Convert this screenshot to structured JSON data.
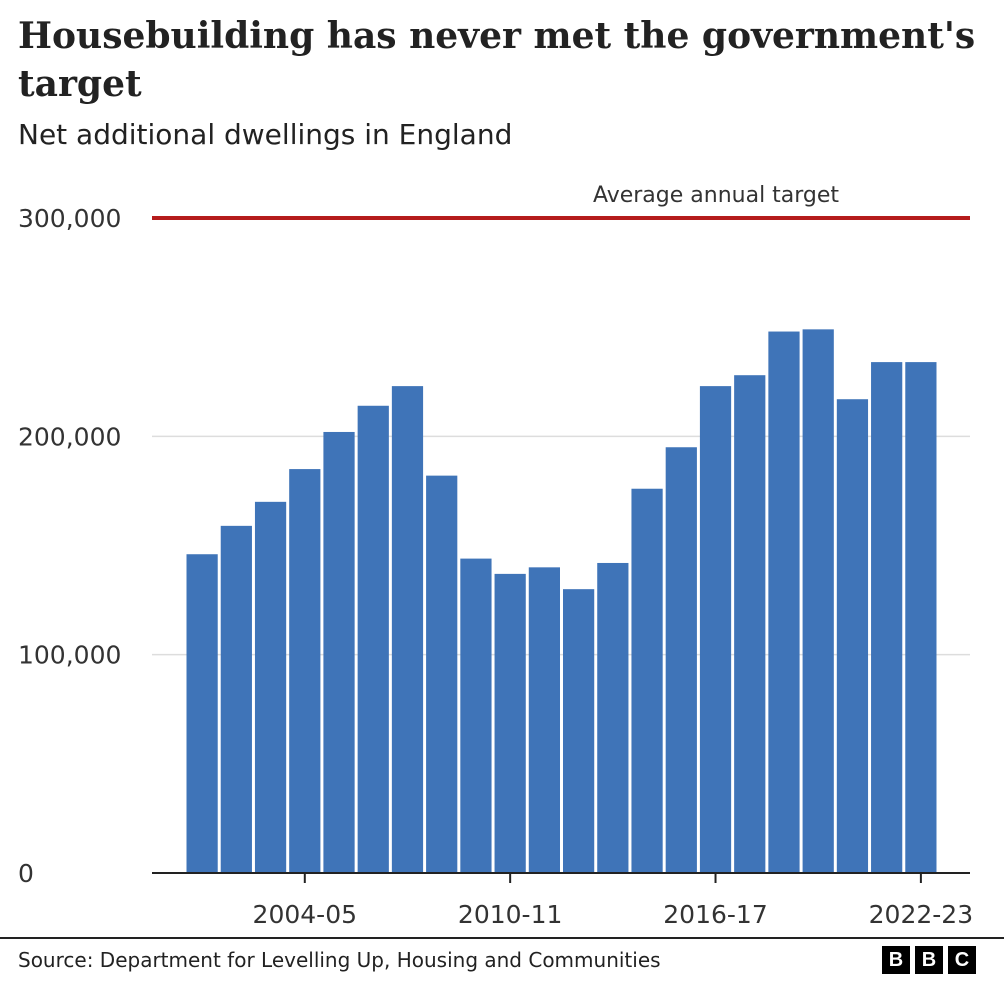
{
  "header": {
    "title": "Housebuilding has never met the government's target",
    "subtitle": "Net additional dwellings in England"
  },
  "footer": {
    "source": "Source: Department for Levelling Up, Housing and Communities",
    "logo_letters": [
      "B",
      "B",
      "C"
    ]
  },
  "colors": {
    "bar": "#3f74b8",
    "target_line": "#b51c1c",
    "grid": "#dddddd",
    "text": "#222222"
  },
  "chart_data": {
    "type": "bar",
    "categories": [
      "2001-02",
      "2002-03",
      "2003-04",
      "2004-05",
      "2005-06",
      "2006-07",
      "2007-08",
      "2008-09",
      "2009-10",
      "2010-11",
      "2011-12",
      "2012-13",
      "2013-14",
      "2014-15",
      "2015-16",
      "2016-17",
      "2017-18",
      "2018-19",
      "2019-20",
      "2020-21",
      "2021-22",
      "2022-23"
    ],
    "values": [
      146000,
      159000,
      170000,
      185000,
      202000,
      214000,
      223000,
      182000,
      144000,
      137000,
      140000,
      130000,
      142000,
      176000,
      195000,
      223000,
      228000,
      248000,
      249000,
      217000,
      234000,
      234000
    ],
    "x_tick_labels": [
      "2004-05",
      "2010-11",
      "2016-17",
      "2022-23"
    ],
    "y_ticks": [
      0,
      100000,
      200000,
      300000
    ],
    "y_tick_labels": [
      "0",
      "100,000",
      "200,000",
      "300,000"
    ],
    "ylim": [
      0,
      300000
    ],
    "grid": true,
    "reference_line": {
      "value": 300000,
      "label": "Average annual target"
    },
    "title": "Housebuilding has never met the government's target",
    "subtitle": "Net additional dwellings in England",
    "xlabel": "",
    "ylabel": ""
  }
}
